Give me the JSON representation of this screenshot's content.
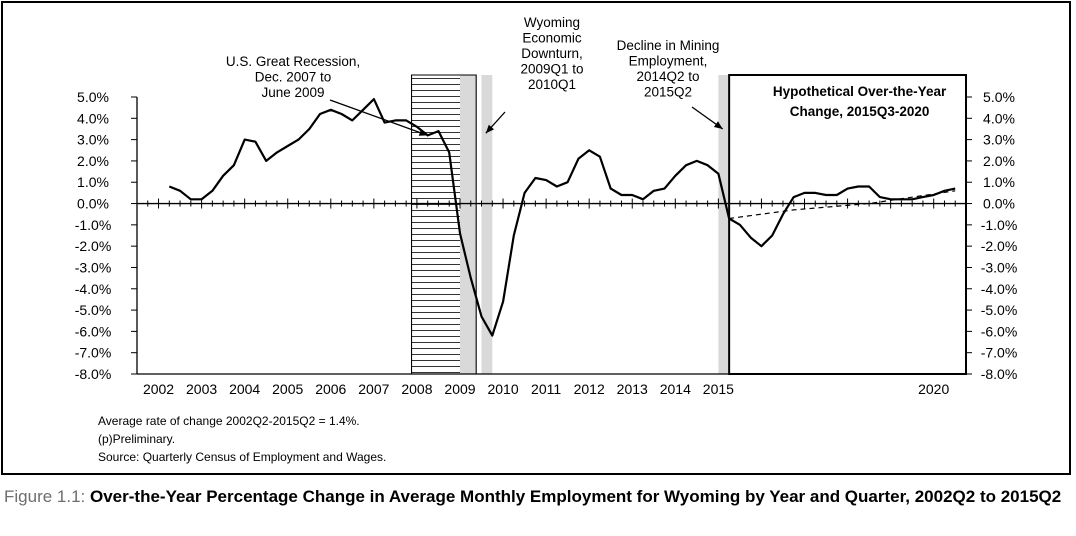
{
  "chart_data": {
    "type": "line",
    "title": "",
    "xlabel": "",
    "ylabel": "",
    "ylim": [
      -8.0,
      5.0
    ],
    "y_ticks": [
      "5.0%",
      "4.0%",
      "3.0%",
      "2.0%",
      "1.0%",
      "0.0%",
      "-1.0%",
      "-2.0%",
      "-3.0%",
      "-4.0%",
      "-5.0%",
      "-6.0%",
      "-7.0%",
      "-8.0%"
    ],
    "x_tick_labels": [
      {
        "label": "2002",
        "x": 2002.0
      },
      {
        "label": "2003",
        "x": 2003.0
      },
      {
        "label": "2004",
        "x": 2004.0
      },
      {
        "label": "2005",
        "x": 2005.0
      },
      {
        "label": "2006",
        "x": 2006.0
      },
      {
        "label": "2007",
        "x": 2007.0
      },
      {
        "label": "2008",
        "x": 2008.0
      },
      {
        "label": "2009",
        "x": 2009.0
      },
      {
        "label": "2010",
        "x": 2010.0
      },
      {
        "label": "2011",
        "x": 2011.0
      },
      {
        "label": "2012",
        "x": 2012.0
      },
      {
        "label": "2013",
        "x": 2013.0
      },
      {
        "label": "2014",
        "x": 2014.0
      },
      {
        "label": "2015",
        "x": 2015.0
      },
      {
        "label": "2020",
        "x": 2020.0
      }
    ],
    "xlim": [
      2001.5,
      2020.75
    ],
    "grid": false,
    "series": [
      {
        "name": "",
        "style": "solid",
        "x": [
          2002.25,
          2002.5,
          2002.75,
          2003.0,
          2003.25,
          2003.5,
          2003.75,
          2004.0,
          2004.25,
          2004.5,
          2004.75,
          2005.0,
          2005.25,
          2005.5,
          2005.75,
          2006.0,
          2006.25,
          2006.5,
          2006.75,
          2007.0,
          2007.25,
          2007.5,
          2007.75,
          2008.0,
          2008.25,
          2008.5,
          2008.75,
          2009.0,
          2009.25,
          2009.5,
          2009.75,
          2010.0,
          2010.25,
          2010.5,
          2010.75,
          2011.0,
          2011.25,
          2011.5,
          2011.75,
          2012.0,
          2012.25,
          2012.5,
          2012.75,
          2013.0,
          2013.25,
          2013.5,
          2013.75,
          2014.0,
          2014.25,
          2014.5,
          2014.75,
          2015.0,
          2015.25,
          2015.5,
          2015.75,
          2016.0,
          2016.25,
          2016.5,
          2016.75,
          2017.0,
          2017.25,
          2017.5,
          2017.75,
          2018.0,
          2018.25,
          2018.5,
          2018.75,
          2019.0,
          2019.25,
          2019.5,
          2019.75,
          2020.0,
          2020.25,
          2020.5
        ],
        "values": [
          0.8,
          0.6,
          0.2,
          0.2,
          0.6,
          1.3,
          1.8,
          3.0,
          2.9,
          2.0,
          2.4,
          2.7,
          3.0,
          3.5,
          4.2,
          4.4,
          4.2,
          3.9,
          4.4,
          4.9,
          3.8,
          3.9,
          3.9,
          3.6,
          3.2,
          3.4,
          2.4,
          -1.4,
          -3.5,
          -5.3,
          -6.2,
          -4.6,
          -1.5,
          0.5,
          1.2,
          1.1,
          0.8,
          1.0,
          2.1,
          2.5,
          2.2,
          0.7,
          0.4,
          0.4,
          0.2,
          0.6,
          0.7,
          1.3,
          1.8,
          2.0,
          1.8,
          1.4,
          -0.7,
          -1.0,
          -1.6,
          -2.0,
          -1.5,
          -0.5,
          0.3,
          0.5,
          0.5,
          0.4,
          0.4,
          0.7,
          0.8,
          0.8,
          0.3,
          0.2,
          0.2,
          0.2,
          0.3,
          0.4,
          0.6,
          0.7
        ]
      },
      {
        "name": "",
        "style": "dashed",
        "x": [
          2015.25,
          2016.75,
          2018.5,
          2020.5
        ],
        "values": [
          -0.7,
          -0.3,
          0.0,
          0.6
        ]
      }
    ],
    "shaded_regions": [
      {
        "from": 2007.875,
        "to": 2009.375,
        "pattern": "horizontal-lines"
      },
      {
        "from": 2009.0,
        "to": 2009.375,
        "pattern": "gray"
      },
      {
        "from": 2009.5,
        "to": 2009.75,
        "pattern": "gray"
      },
      {
        "from": 2015.0,
        "to": 2015.25,
        "pattern": "gray"
      }
    ],
    "annotations": [
      {
        "id": "recession",
        "lines": [
          "U.S. Great Recession,",
          "Dec. 2007 to",
          "June 2009"
        ],
        "arrow_to_x": 2008.25,
        "arrow_to_y": 3.2
      },
      {
        "id": "wyoming",
        "lines": [
          "Wyoming",
          "Economic",
          "Downturn,",
          "2009Q1 to",
          "2010Q1"
        ],
        "arrow_to_x": 2009.6,
        "arrow_to_y": 3.3
      },
      {
        "id": "mining",
        "lines": [
          "Decline in Mining",
          "Employment,",
          "2014Q2 to",
          "2015Q2"
        ],
        "arrow_to_x": 2015.1,
        "arrow_to_y": 3.5
      }
    ],
    "hypothetical_box": {
      "lines": [
        "Hypothetical Over-the-Year",
        "Change, 2015Q3-2020"
      ],
      "from": 2015.25
    }
  },
  "notes": {
    "avg": "Average rate of change 2002Q2-2015Q2 = 1.4%.",
    "prelim": "(p)Preliminary.",
    "source": "Source: Quarterly Census of Employment and Wages."
  },
  "caption": {
    "prefix": "Figure 1.1: ",
    "title": "Over-the-Year Percentage Change in Average Monthly Employment for Wyoming by Year and Quarter, 2002Q2 to 2015Q2"
  }
}
